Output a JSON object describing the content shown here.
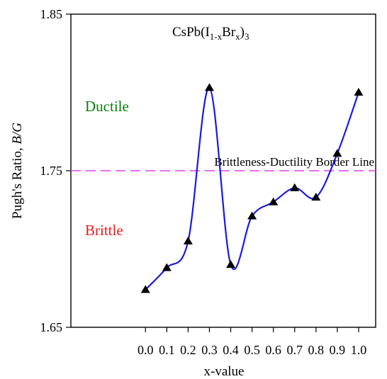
{
  "chart_data": {
    "type": "line",
    "title_main": "CsPb(I",
    "title_sub1": "1-x",
    "title_mid": "Br",
    "title_sub2": "x",
    "title_end": ")",
    "title_sub3": "3",
    "xlabel": "x-value",
    "ylabel_main": "Pugh's Ratio, ",
    "ylabel_italic": "B/G",
    "x": [
      0.0,
      0.1,
      0.2,
      0.3,
      0.4,
      0.5,
      0.6,
      0.7,
      0.8,
      0.9,
      1.0
    ],
    "x_tick_labels": [
      "0.0",
      "0.1",
      "0.2",
      "0.3",
      "0.4",
      "0.5",
      "0.6",
      "0.7",
      "0.8",
      "0.9",
      "1.0"
    ],
    "y": [
      1.674,
      1.688,
      1.705,
      1.803,
      1.69,
      1.721,
      1.73,
      1.739,
      1.733,
      1.761,
      1.8
    ],
    "y_ticks": [
      1.65,
      1.75,
      1.85
    ],
    "y_tick_labels": [
      "1.65",
      "1.75",
      "1.85"
    ],
    "xlim": [
      -0.35,
      1.08
    ],
    "ylim": [
      1.65,
      1.85
    ],
    "border_line": {
      "y": 1.75,
      "label": "Brittleness-Ductility Border Line",
      "color": "#e83be8"
    },
    "region_labels": {
      "ductile": {
        "text": "Ductile",
        "color": "#0a7d0a"
      },
      "brittle": {
        "text": "Brittle",
        "color": "#e81c1c"
      }
    },
    "curve_color": "#1a1adb",
    "marker_color": "#000000",
    "marker": "triangle",
    "grid": false,
    "legend": "none"
  }
}
